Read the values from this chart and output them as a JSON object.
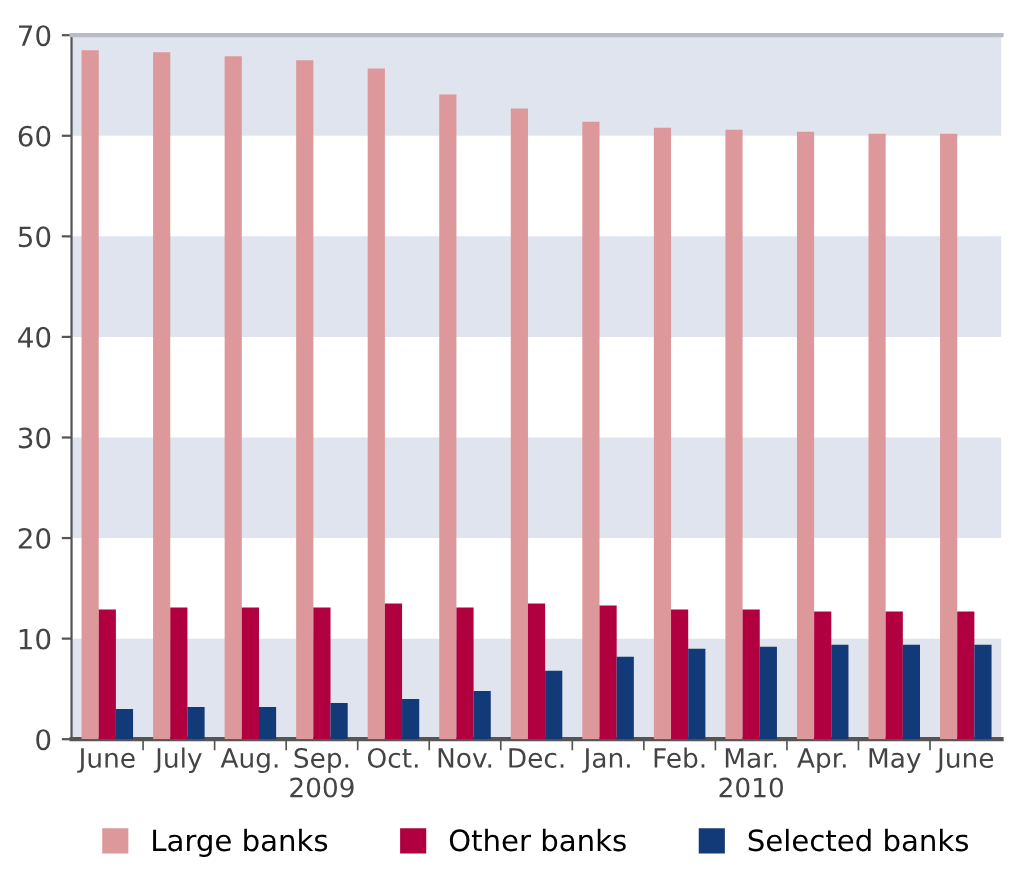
{
  "chart_data": {
    "type": "bar",
    "categories": [
      "June",
      "July",
      "Aug.",
      "Sep.\n2009",
      "Oct.",
      "Nov.",
      "Dec.",
      "Jan.",
      "Feb.",
      "Mar.\n2010",
      "Apr.",
      "May",
      "June"
    ],
    "series": [
      {
        "name": "Large banks",
        "color": "#dc989a",
        "values": [
          68.5,
          68.3,
          67.9,
          67.5,
          66.7,
          64.1,
          62.7,
          61.4,
          60.8,
          60.6,
          60.4,
          60.2,
          60.2
        ]
      },
      {
        "name": "Other banks",
        "color": "#b0003f",
        "values": [
          12.9,
          13.1,
          13.1,
          13.1,
          13.5,
          13.1,
          13.5,
          13.3,
          12.9,
          12.9,
          12.7,
          12.7,
          12.7
        ]
      },
      {
        "name": "Selected banks",
        "color": "#133a78",
        "values": [
          3.0,
          3.2,
          3.2,
          3.6,
          4.0,
          4.8,
          6.8,
          8.2,
          9.0,
          9.2,
          9.4,
          9.4,
          9.4
        ]
      }
    ],
    "ylim": [
      0,
      70
    ],
    "yticks": [
      0,
      10,
      20,
      30,
      40,
      50,
      60,
      70
    ],
    "bands": [
      {
        "axis": "y",
        "from": 0,
        "to": 10,
        "color": "#dfe4ee"
      },
      {
        "axis": "y",
        "from": 20,
        "to": 30,
        "color": "#dfe4ee"
      },
      {
        "axis": "y",
        "from": 40,
        "to": 50,
        "color": "#dfe4ee"
      },
      {
        "axis": "y",
        "from": 60,
        "to": 70,
        "color": "#dfe4ee"
      }
    ],
    "legend": "bottom"
  }
}
